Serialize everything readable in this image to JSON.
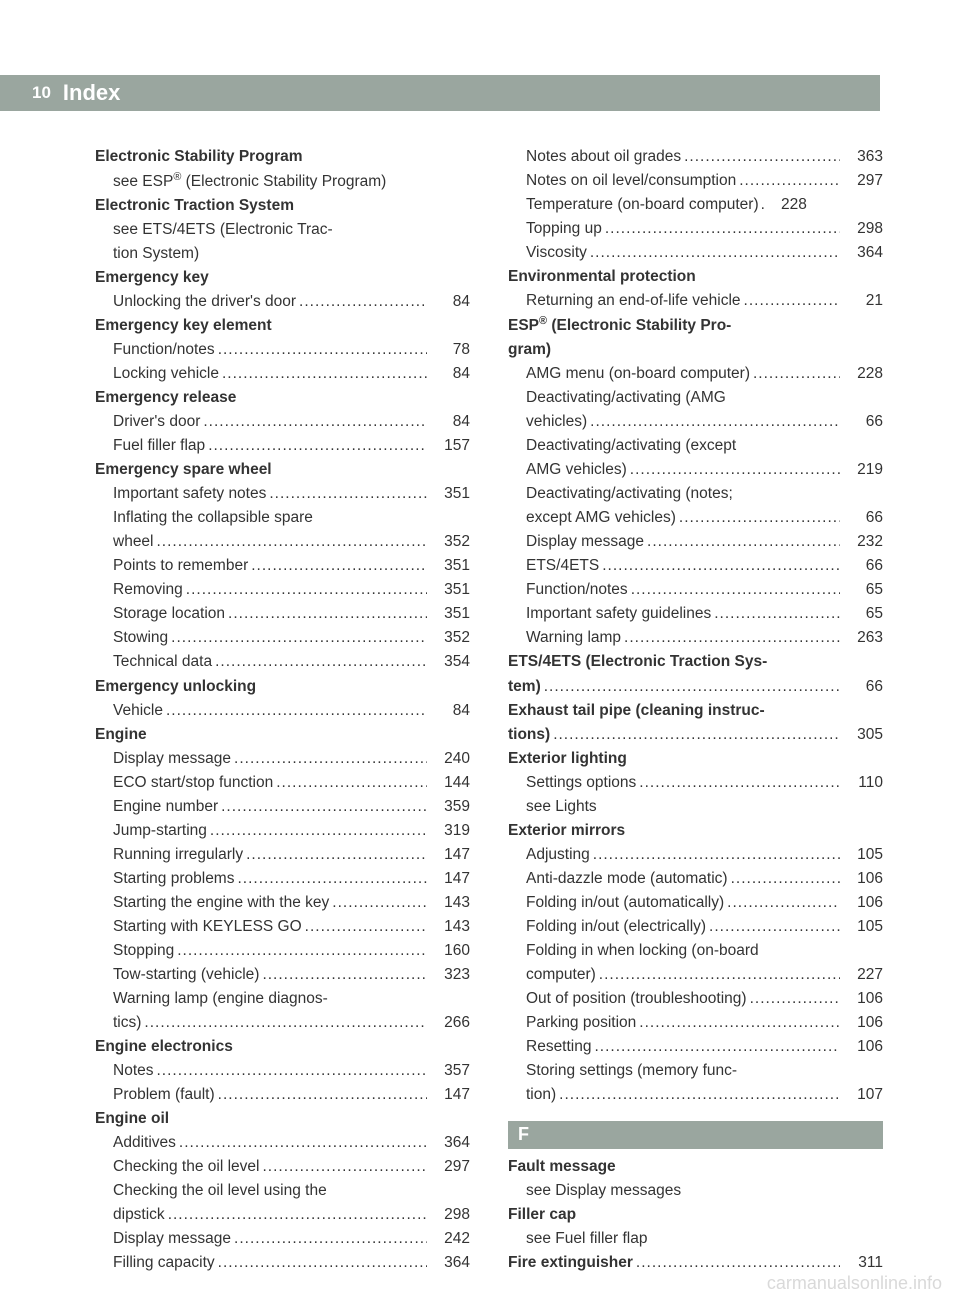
{
  "header": {
    "page": "10",
    "title": "Index"
  },
  "watermark": "carmanualsonline.info",
  "section_letter": "F",
  "left": [
    {
      "t": "head",
      "text": "Electronic Stability Program"
    },
    {
      "t": "subtext",
      "html": "see ESP<sup>®</sup> (Electronic Stability Program)"
    },
    {
      "t": "head",
      "text": "Electronic Traction System"
    },
    {
      "t": "subtext",
      "text": "see ETS/4ETS (Electronic Trac-"
    },
    {
      "t": "subtext",
      "text": "tion System)"
    },
    {
      "t": "head",
      "text": "Emergency key"
    },
    {
      "t": "sub",
      "label": "Unlocking the driver's door",
      "pg": "84"
    },
    {
      "t": "head",
      "text": "Emergency key element"
    },
    {
      "t": "sub",
      "label": "Function/notes",
      "pg": "78"
    },
    {
      "t": "sub",
      "label": "Locking vehicle",
      "pg": "84"
    },
    {
      "t": "head",
      "text": "Emergency release"
    },
    {
      "t": "sub",
      "label": "Driver's door",
      "pg": "84"
    },
    {
      "t": "sub",
      "label": "Fuel filler flap",
      "pg": "157"
    },
    {
      "t": "head",
      "text": "Emergency spare wheel"
    },
    {
      "t": "sub",
      "label": "Important safety notes",
      "pg": "351"
    },
    {
      "t": "subtext",
      "text": "Inflating the collapsible spare"
    },
    {
      "t": "subcont",
      "label": "wheel",
      "pg": "352"
    },
    {
      "t": "sub",
      "label": "Points to remember",
      "pg": "351"
    },
    {
      "t": "sub",
      "label": "Removing",
      "pg": "351"
    },
    {
      "t": "sub",
      "label": "Storage location",
      "pg": "351"
    },
    {
      "t": "sub",
      "label": "Stowing",
      "pg": "352"
    },
    {
      "t": "sub",
      "label": "Technical data",
      "pg": "354"
    },
    {
      "t": "head",
      "text": "Emergency unlocking"
    },
    {
      "t": "sub",
      "label": "Vehicle",
      "pg": "84"
    },
    {
      "t": "head",
      "text": "Engine"
    },
    {
      "t": "sub",
      "label": "Display message",
      "pg": "240"
    },
    {
      "t": "sub",
      "label": "ECO start/stop function",
      "pg": "144"
    },
    {
      "t": "sub",
      "label": "Engine number",
      "pg": "359"
    },
    {
      "t": "sub",
      "label": "Jump-starting",
      "pg": "319"
    },
    {
      "t": "sub",
      "label": "Running irregularly",
      "pg": "147"
    },
    {
      "t": "sub",
      "label": "Starting problems",
      "pg": "147"
    },
    {
      "t": "sub",
      "label": "Starting the engine with the key",
      "pg": "143"
    },
    {
      "t": "sub",
      "label": "Starting with KEYLESS GO",
      "pg": "143"
    },
    {
      "t": "sub",
      "label": "Stopping",
      "pg": "160"
    },
    {
      "t": "sub",
      "label": "Tow-starting (vehicle)",
      "pg": "323"
    },
    {
      "t": "subtext",
      "text": "Warning lamp (engine diagnos-"
    },
    {
      "t": "subcont",
      "label": "tics)",
      "pg": "266"
    },
    {
      "t": "head",
      "text": "Engine electronics"
    },
    {
      "t": "sub",
      "label": "Notes",
      "pg": "357"
    },
    {
      "t": "sub",
      "label": "Problem (fault)",
      "pg": "147"
    },
    {
      "t": "head",
      "text": "Engine oil"
    },
    {
      "t": "sub",
      "label": "Additives",
      "pg": "364"
    },
    {
      "t": "sub",
      "label": "Checking the oil level",
      "pg": "297"
    },
    {
      "t": "subtext",
      "text": "Checking the oil level using the"
    },
    {
      "t": "subcont",
      "label": "dipstick",
      "pg": "298"
    },
    {
      "t": "sub",
      "label": "Display message",
      "pg": "242"
    },
    {
      "t": "sub",
      "label": "Filling capacity",
      "pg": "364"
    }
  ],
  "right": [
    {
      "t": "sub",
      "label": "Notes about oil grades",
      "pg": "363"
    },
    {
      "t": "sub",
      "label": "Notes on oil level/consumption",
      "pg": "297"
    },
    {
      "t": "sub",
      "label": "Temperature (on-board computer)",
      "short": true,
      "pg": "228"
    },
    {
      "t": "sub",
      "label": "Topping up",
      "pg": "298"
    },
    {
      "t": "sub",
      "label": "Viscosity",
      "pg": "364"
    },
    {
      "t": "head",
      "text": "Environmental protection"
    },
    {
      "t": "sub",
      "label": "Returning an end-of-life vehicle",
      "pg": "21"
    },
    {
      "t": "headhtml",
      "html": "ESP<sup>®</sup> (Electronic Stability Pro-"
    },
    {
      "t": "headtext_noindent",
      "text": "gram)"
    },
    {
      "t": "sub",
      "label": "AMG menu (on-board computer)",
      "pg": "228"
    },
    {
      "t": "subtext",
      "text": "Deactivating/activating (AMG"
    },
    {
      "t": "subcont",
      "label": "vehicles)",
      "pg": "66"
    },
    {
      "t": "subtext",
      "text": "Deactivating/activating (except"
    },
    {
      "t": "subcont",
      "label": "AMG vehicles)",
      "pg": "219"
    },
    {
      "t": "subtext",
      "text": "Deactivating/activating (notes;"
    },
    {
      "t": "subcont",
      "label": "except AMG vehicles)",
      "pg": "66"
    },
    {
      "t": "sub",
      "label": "Display message",
      "pg": "232"
    },
    {
      "t": "sub",
      "label": "ETS/4ETS",
      "pg": "66"
    },
    {
      "t": "sub",
      "label": "Function/notes",
      "pg": "65"
    },
    {
      "t": "sub",
      "label": "Important safety guidelines",
      "pg": "65"
    },
    {
      "t": "sub",
      "label": "Warning lamp",
      "pg": "263"
    },
    {
      "t": "headtext_noindent",
      "text": "ETS/4ETS (Electronic Traction Sys-"
    },
    {
      "t": "headrow",
      "label": "tem)",
      "pg": "66"
    },
    {
      "t": "headtext_noindent",
      "text": "Exhaust tail pipe (cleaning instruc-"
    },
    {
      "t": "headrow",
      "label": "tions)",
      "pg": "305"
    },
    {
      "t": "head",
      "text": "Exterior lighting"
    },
    {
      "t": "sub",
      "label": "Settings options",
      "pg": "110"
    },
    {
      "t": "subtext",
      "text": "see Lights"
    },
    {
      "t": "head",
      "text": "Exterior mirrors"
    },
    {
      "t": "sub",
      "label": "Adjusting",
      "pg": "105"
    },
    {
      "t": "sub",
      "label": "Anti-dazzle mode (automatic)",
      "pg": "106"
    },
    {
      "t": "sub",
      "label": "Folding in/out (automatically)",
      "pg": "106"
    },
    {
      "t": "sub",
      "label": "Folding in/out (electrically)",
      "pg": "105"
    },
    {
      "t": "subtext",
      "text": "Folding in when locking (on-board"
    },
    {
      "t": "subcont",
      "label": "computer)",
      "pg": "227"
    },
    {
      "t": "sub",
      "label": "Out of position (troubleshooting)",
      "pg": "106"
    },
    {
      "t": "sub",
      "label": "Parking position",
      "pg": "106"
    },
    {
      "t": "sub",
      "label": "Resetting",
      "pg": "106"
    },
    {
      "t": "subtext",
      "text": "Storing settings (memory func-"
    },
    {
      "t": "subcont",
      "label": "tion)",
      "pg": "107"
    },
    {
      "t": "section",
      "letter": "F"
    },
    {
      "t": "head",
      "text": "Fault message"
    },
    {
      "t": "subtext",
      "text": "see Display messages"
    },
    {
      "t": "head",
      "text": "Filler cap"
    },
    {
      "t": "subtext",
      "text": "see Fuel filler flap"
    },
    {
      "t": "headrow",
      "label": "Fire extinguisher",
      "pg": "311"
    }
  ]
}
